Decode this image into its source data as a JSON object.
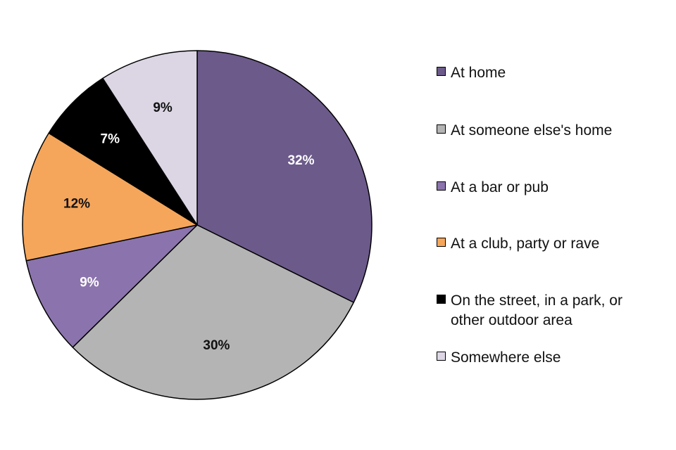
{
  "chart_data": {
    "type": "pie",
    "start_angle_deg": 0,
    "direction": "clockwise",
    "legend_position": "right",
    "slices": [
      {
        "label": "At home",
        "value": 32,
        "display": "32%",
        "color": "#6b5a8a",
        "label_color": "#ffffff"
      },
      {
        "label": "At someone else's home",
        "value": 30,
        "display": "30%",
        "color": "#b4b4b4",
        "label_color": "#111111"
      },
      {
        "label": "At a bar or pub",
        "value": 9,
        "display": "9%",
        "color": "#8b74ad",
        "label_color": "#ffffff"
      },
      {
        "label": "At a club, party or rave",
        "value": 12,
        "display": "12%",
        "color": "#f5a65b",
        "label_color": "#111111"
      },
      {
        "label": "On the street, in a park, or\nother outdoor area",
        "value": 7,
        "display": "7%",
        "color": "#000000",
        "label_color": "#ffffff"
      },
      {
        "label": "Somewhere else",
        "value": 9,
        "display": "9%",
        "color": "#dcd6e4",
        "label_color": "#111111"
      }
    ]
  }
}
